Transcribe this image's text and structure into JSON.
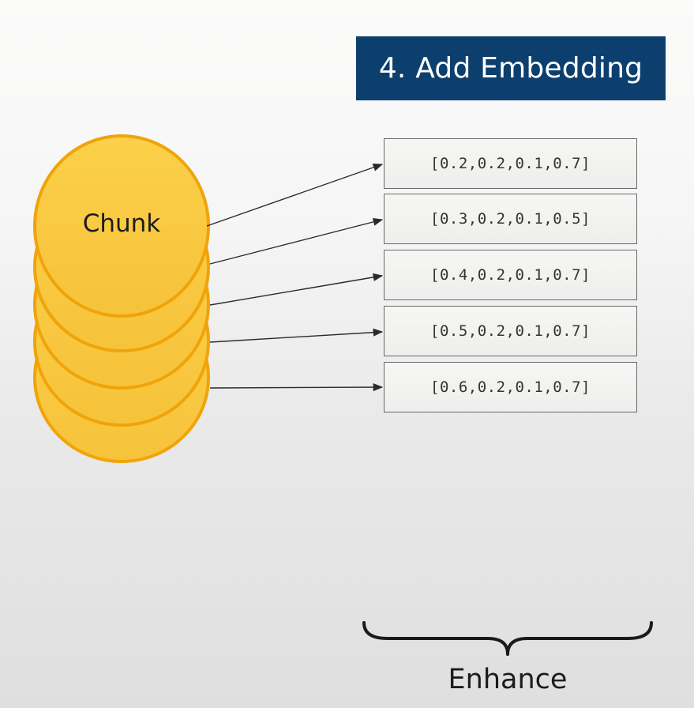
{
  "title": "4. Add Embedding",
  "chunk_label": "Chunk",
  "vectors": [
    "[0.2,0.2,0.1,0.7]",
    "[0.3,0.2,0.1,0.5]",
    "[0.4,0.2,0.1,0.7]",
    "[0.5,0.2,0.1,0.7]",
    "[0.6,0.2,0.1,0.7]"
  ],
  "brace_label": "Enhance",
  "colors": {
    "banner": "#0d3f6e",
    "chunk_fill": "#fbc93d",
    "chunk_stroke": "#f0a40a"
  }
}
